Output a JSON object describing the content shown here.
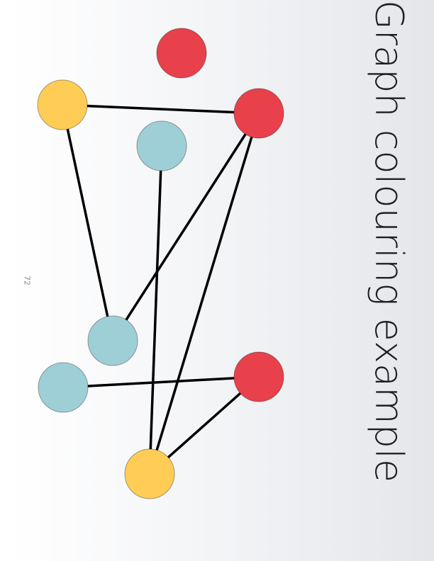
{
  "slide": {
    "title": "Graph colouring example",
    "page_number": "72"
  },
  "colors": {
    "red": "#e8414b",
    "yellow": "#ffcd55",
    "teal": "#9fcfd6",
    "edge": "#000000"
  },
  "graph": {
    "nodes": [
      {
        "id": "n1",
        "color": "red"
      },
      {
        "id": "n2",
        "color": "yellow"
      },
      {
        "id": "n3",
        "color": "red"
      },
      {
        "id": "n4",
        "color": "teal"
      },
      {
        "id": "n5",
        "color": "teal"
      },
      {
        "id": "n6",
        "color": "teal"
      },
      {
        "id": "n7",
        "color": "red"
      },
      {
        "id": "n8",
        "color": "yellow"
      }
    ],
    "edges": [
      [
        "n2",
        "n3"
      ],
      [
        "n2",
        "n5"
      ],
      [
        "n3",
        "n5"
      ],
      [
        "n3",
        "n8"
      ],
      [
        "n4",
        "n8"
      ],
      [
        "n6",
        "n7"
      ],
      [
        "n7",
        "n8"
      ]
    ]
  }
}
